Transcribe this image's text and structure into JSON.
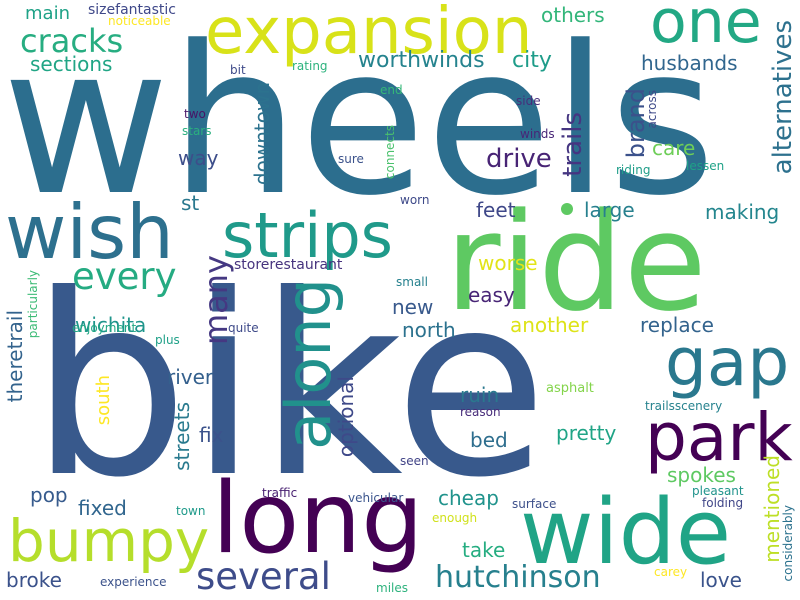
{
  "words": {
    "wheels": "wheels",
    "bike": "bike",
    "ride": "ride",
    "long": "long",
    "wide": "wide",
    "expansion": "expansion",
    "one": "one",
    "wish": "wish",
    "strips": "strips",
    "gap": "gap",
    "park": "park",
    "along": "along",
    "bumpy": "bumpy",
    "several": "several",
    "every": "every",
    "cracks": "cracks",
    "hutchinson": "hutchinson",
    "many": "many",
    "drive": "drive",
    "trails": "trails",
    "brand": "brand",
    "alternatives": "alternatives",
    "downtown": "downtown",
    "worthwinds": "worthwinds",
    "city": "city",
    "husbands": "husbands",
    "sections": "sections",
    "main": "main",
    "others": "others",
    "way": "way",
    "feet": "feet",
    "large": "large",
    "making": "making",
    "care": "care",
    "st": "st",
    "easy": "easy",
    "worse": "worse",
    "wichita": "wichita",
    "new": "new",
    "north": "north",
    "another": "another",
    "replace": "replace",
    "optional": "optional",
    "river": "river",
    "theretrail": "theretrail",
    "fix": "fix",
    "streets": "streets",
    "ruin": "ruin",
    "bed": "bed",
    "pretty": "pretty",
    "south": "south",
    "spokes": "spokes",
    "mentioned": "mentioned",
    "pop": "pop",
    "fixed": "fixed",
    "cheap": "cheap",
    "take": "take",
    "broke": "broke",
    "love": "love",
    "sizefantastic": "sizefantastic",
    "noticeable": "noticeable",
    "rating": "rating",
    "bit": "bit",
    "end": "end",
    "two": "two",
    "stars": "stars",
    "sure": "sure",
    "connects": "connects",
    "side": "side",
    "across": "across",
    "winds": "winds",
    "riding": "riding",
    "lessen": "lessen",
    "worn": "worn",
    "storerestaurant": "storerestaurant",
    "small": "small",
    "particularly": "particularly",
    "enjoyment": "enjoyment",
    "plus": "plus",
    "quite": "quite",
    "asphalt": "asphalt",
    "trailsscenery": "trailsscenery",
    "reason": "reason",
    "seen": "seen",
    "traffic": "traffic",
    "vehicular": "vehicular",
    "surface": "surface",
    "pleasant": "pleasant",
    "folding": "folding",
    "considerably": "considerably",
    "town": "town",
    "enough": "enough",
    "experience": "experience",
    "miles": "miles",
    "carey": "carey"
  }
}
